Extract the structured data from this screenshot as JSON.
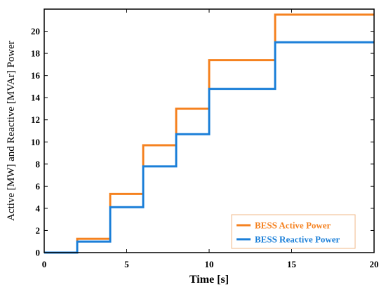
{
  "chart_data": {
    "type": "line",
    "step": true,
    "title": "",
    "xlabel": "Time [s]",
    "ylabel": "Active [MW] and Reactive [MVAr] Power",
    "xlim": [
      0,
      20
    ],
    "ylim": [
      0,
      22
    ],
    "xticks": [
      0,
      5,
      10,
      15,
      20
    ],
    "yticks": [
      0,
      2,
      4,
      6,
      8,
      10,
      12,
      14,
      16,
      18,
      20
    ],
    "grid": false,
    "legend_position": "bottom-right",
    "series": [
      {
        "name": "BESS Active Power",
        "color": "#f58220",
        "x": [
          0,
          2,
          2,
          4,
          4,
          6,
          6,
          8,
          8,
          10,
          10,
          14,
          14,
          20
        ],
        "y": [
          0,
          0,
          1.25,
          1.25,
          5.3,
          5.3,
          9.7,
          9.7,
          13.0,
          13.0,
          17.4,
          17.4,
          21.5,
          21.5
        ]
      },
      {
        "name": "BESS Reactive Power",
        "color": "#1b7fd8",
        "x": [
          0,
          2,
          2,
          4,
          4,
          6,
          6,
          8,
          8,
          10,
          10,
          14,
          14,
          20
        ],
        "y": [
          0,
          0,
          1.0,
          1.0,
          4.1,
          4.1,
          7.8,
          7.8,
          10.7,
          10.7,
          14.8,
          14.8,
          19.0,
          19.0
        ]
      }
    ]
  }
}
